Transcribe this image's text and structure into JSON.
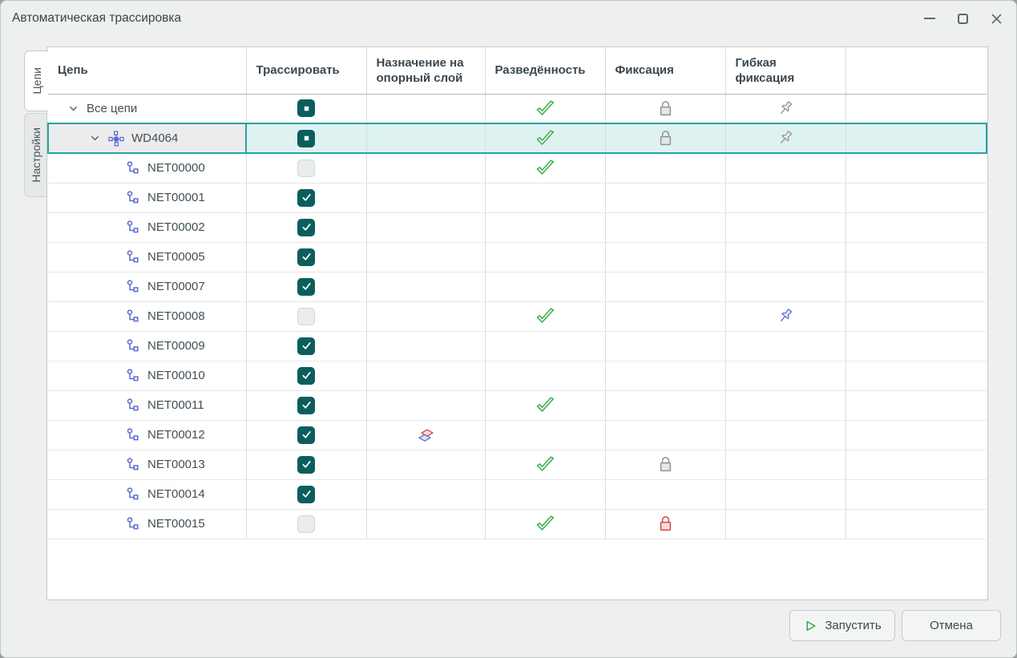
{
  "window": {
    "title": "Автоматическая трассировка",
    "controls": [
      {
        "icon": "minimize-icon"
      },
      {
        "icon": "maximize-icon"
      },
      {
        "icon": "close-icon"
      }
    ]
  },
  "colors": {
    "accent_teal": "#0b5e5e",
    "selection_bg": "#def2f2",
    "selection_border": "#28a2a2",
    "success_green": "#3faf4e",
    "error_red": "#cf4848",
    "net_blue": "#5b6bcd",
    "neutral_gray": "#8d9494"
  },
  "tabs": [
    {
      "label": "Цепи",
      "active": true
    },
    {
      "label": "Настройки",
      "active": false
    }
  ],
  "table": {
    "columns": [
      {
        "label": "Цепь"
      },
      {
        "label": "Трассировать"
      },
      {
        "label": "Назначение на опорный слой"
      },
      {
        "label": "Разведённость"
      },
      {
        "label": "Фиксация"
      },
      {
        "label": "Гибкая фиксация"
      },
      {
        "label": ""
      }
    ],
    "rows": [
      {
        "label": "Все цепи",
        "level": 0,
        "kind": "group",
        "expanded": true,
        "checkbox": "indeterminate",
        "assign_layer": "",
        "routed": "check-green",
        "fixation": "lock-gray",
        "flexible_fixation": "pin-gray",
        "selected": false
      },
      {
        "label": "WD4064",
        "level": 1,
        "kind": "class",
        "expanded": true,
        "checkbox": "indeterminate",
        "assign_layer": "",
        "routed": "check-green",
        "fixation": "lock-gray",
        "flexible_fixation": "pin-gray",
        "selected": true
      },
      {
        "label": "NET00000",
        "level": 2,
        "kind": "net",
        "expanded": false,
        "checkbox": "unchecked",
        "assign_layer": "",
        "routed": "check-green",
        "fixation": "",
        "flexible_fixation": "",
        "selected": false
      },
      {
        "label": "NET00001",
        "level": 2,
        "kind": "net",
        "expanded": false,
        "checkbox": "checked",
        "assign_layer": "",
        "routed": "",
        "fixation": "",
        "flexible_fixation": "",
        "selected": false
      },
      {
        "label": "NET00002",
        "level": 2,
        "kind": "net",
        "expanded": false,
        "checkbox": "checked",
        "assign_layer": "",
        "routed": "",
        "fixation": "",
        "flexible_fixation": "",
        "selected": false
      },
      {
        "label": "NET00005",
        "level": 2,
        "kind": "net",
        "expanded": false,
        "checkbox": "checked",
        "assign_layer": "",
        "routed": "",
        "fixation": "",
        "flexible_fixation": "",
        "selected": false
      },
      {
        "label": "NET00007",
        "level": 2,
        "kind": "net",
        "expanded": false,
        "checkbox": "checked",
        "assign_layer": "",
        "routed": "",
        "fixation": "",
        "flexible_fixation": "",
        "selected": false
      },
      {
        "label": "NET00008",
        "level": 2,
        "kind": "net",
        "expanded": false,
        "checkbox": "unchecked",
        "assign_layer": "",
        "routed": "check-green",
        "fixation": "",
        "flexible_fixation": "pin-blue",
        "selected": false
      },
      {
        "label": "NET00009",
        "level": 2,
        "kind": "net",
        "expanded": false,
        "checkbox": "checked",
        "assign_layer": "",
        "routed": "",
        "fixation": "",
        "flexible_fixation": "",
        "selected": false
      },
      {
        "label": "NET00010",
        "level": 2,
        "kind": "net",
        "expanded": false,
        "checkbox": "checked",
        "assign_layer": "",
        "routed": "",
        "fixation": "",
        "flexible_fixation": "",
        "selected": false
      },
      {
        "label": "NET00011",
        "level": 2,
        "kind": "net",
        "expanded": false,
        "checkbox": "checked",
        "assign_layer": "",
        "routed": "check-green",
        "fixation": "",
        "flexible_fixation": "",
        "selected": false
      },
      {
        "label": "NET00012",
        "level": 2,
        "kind": "net",
        "expanded": false,
        "checkbox": "checked",
        "assign_layer": "layers",
        "routed": "",
        "fixation": "",
        "flexible_fixation": "",
        "selected": false
      },
      {
        "label": "NET00013",
        "level": 2,
        "kind": "net",
        "expanded": false,
        "checkbox": "checked",
        "assign_layer": "",
        "routed": "check-green",
        "fixation": "lock-gray",
        "flexible_fixation": "",
        "selected": false
      },
      {
        "label": "NET00014",
        "level": 2,
        "kind": "net",
        "expanded": false,
        "checkbox": "checked",
        "assign_layer": "",
        "routed": "",
        "fixation": "",
        "flexible_fixation": "",
        "selected": false
      },
      {
        "label": "NET00015",
        "level": 2,
        "kind": "net",
        "expanded": false,
        "checkbox": "unchecked",
        "assign_layer": "",
        "routed": "check-green",
        "fixation": "lock-red",
        "flexible_fixation": "",
        "selected": false
      }
    ]
  },
  "footer": {
    "run": {
      "label": "Запустить",
      "icon": "play-icon"
    },
    "cancel": {
      "label": "Отмена"
    }
  }
}
